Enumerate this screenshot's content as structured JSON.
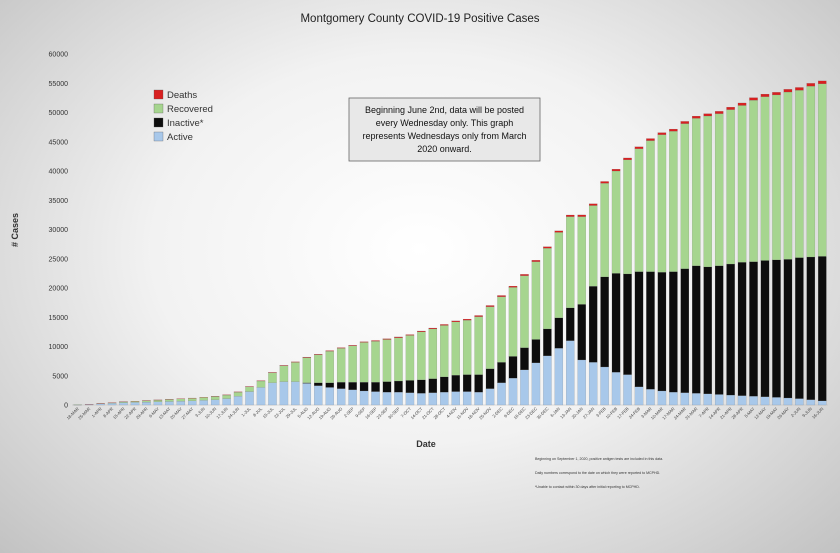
{
  "chart_data": {
    "type": "bar",
    "stacked": true,
    "title": "Montgomery County COVID-19 Positive Cases",
    "xlabel": "Date",
    "ylabel": "# Cases",
    "ylim": [
      0,
      60000
    ],
    "yticks": [
      0,
      5000,
      10000,
      15000,
      20000,
      25000,
      30000,
      35000,
      40000,
      45000,
      50000,
      55000,
      60000
    ],
    "grid": false,
    "legend_position": "top-left",
    "legend_order": [
      "Deaths",
      "Recovered",
      "Inactive*",
      "Active"
    ],
    "colors": {
      "Active": "#a8c8ea",
      "Inactive*": "#0d0d0d",
      "Recovered": "#a6d58f",
      "Deaths": "#d82020"
    },
    "categories": [
      "18-MAR",
      "25-MAR",
      "1-APR",
      "8-APR",
      "15-APR",
      "22-APR",
      "29-APR",
      "6-MAY",
      "13-MAY",
      "20-MAY",
      "27-MAY",
      "3-JUN",
      "10-JUN",
      "17-JUN",
      "24-JUN",
      "1-JUL",
      "8-JUL",
      "15-JUL",
      "22-JUL",
      "29-JUL",
      "5-AUG",
      "12-AUG",
      "19-AUG",
      "26-AUG",
      "2-SEP",
      "9-SEP",
      "16-SEP",
      "23-SEP",
      "30-SEP",
      "7-OCT",
      "14-OCT",
      "21-OCT",
      "28-OCT",
      "4-NOV",
      "11-NOV",
      "18-NOV",
      "25-NOV",
      "2-DEC",
      "9-DEC",
      "16-DEC",
      "23-DEC",
      "30-DEC",
      "6-JAN",
      "13-JAN",
      "20-JAN",
      "27-JAN",
      "3-FEB",
      "10-FEB",
      "17-FEB",
      "24-FEB",
      "3-MAR",
      "10-MAR",
      "17-MAR",
      "24-MAR",
      "31-MAR",
      "7-APR",
      "14-APR",
      "21-APR",
      "28-APR",
      "5-MAY",
      "12-MAY",
      "19-MAY",
      "26-MAY",
      "2-JUN",
      "9-JUN",
      "16-JUN"
    ],
    "series": [
      {
        "name": "Active",
        "values": [
          40,
          120,
          200,
          300,
          400,
          450,
          500,
          550,
          600,
          650,
          700,
          800,
          900,
          1100,
          1500,
          2300,
          3000,
          3800,
          4000,
          4000,
          3700,
          3300,
          3000,
          2800,
          2600,
          2400,
          2300,
          2200,
          2200,
          2100,
          2000,
          2100,
          2200,
          2300,
          2300,
          2200,
          2800,
          3800,
          4600,
          6000,
          7200,
          8400,
          9700,
          11000,
          7700,
          7300,
          6500,
          5600,
          5200,
          3100,
          2700,
          2400,
          2200,
          2100,
          2000,
          1900,
          1800,
          1700,
          1600,
          1500,
          1400,
          1300,
          1200,
          1100,
          900,
          700
        ]
      },
      {
        "name": "Inactive*",
        "values": [
          0,
          0,
          0,
          0,
          0,
          0,
          0,
          0,
          0,
          0,
          0,
          0,
          0,
          0,
          0,
          0,
          0,
          0,
          0,
          0,
          100,
          500,
          800,
          1100,
          1300,
          1500,
          1600,
          1800,
          1900,
          2100,
          2300,
          2400,
          2600,
          2800,
          2900,
          3000,
          3400,
          3500,
          3700,
          3800,
          4000,
          4600,
          5200,
          5600,
          9500,
          13000,
          15400,
          16900,
          17200,
          19700,
          20100,
          20300,
          20600,
          21200,
          21800,
          21700,
          22000,
          22400,
          22800,
          23000,
          23300,
          23500,
          23700,
          24100,
          24400,
          24700
        ]
      },
      {
        "name": "Recovered",
        "values": [
          10,
          30,
          60,
          100,
          150,
          200,
          250,
          300,
          350,
          400,
          450,
          500,
          550,
          600,
          700,
          800,
          1100,
          1700,
          2700,
          3300,
          4300,
          4800,
          5400,
          5800,
          6200,
          6800,
          7000,
          7200,
          7400,
          7700,
          8200,
          8500,
          8800,
          9100,
          9300,
          9900,
          10600,
          11200,
          11800,
          12300,
          13300,
          13800,
          14600,
          15600,
          15000,
          13800,
          16000,
          17500,
          19500,
          21000,
          22400,
          23500,
          24000,
          24800,
          25200,
          25800,
          26000,
          26400,
          26800,
          27600,
          28000,
          28200,
          28600,
          28600,
          29200,
          29500
        ]
      },
      {
        "name": "Deaths",
        "values": [
          0,
          2,
          5,
          10,
          15,
          20,
          25,
          30,
          35,
          40,
          45,
          50,
          55,
          60,
          65,
          70,
          75,
          80,
          85,
          90,
          95,
          100,
          105,
          110,
          115,
          120,
          125,
          130,
          135,
          140,
          150,
          160,
          170,
          180,
          190,
          200,
          210,
          220,
          230,
          240,
          250,
          260,
          270,
          280,
          290,
          300,
          310,
          320,
          330,
          340,
          350,
          360,
          370,
          380,
          390,
          400,
          410,
          420,
          430,
          440,
          450,
          460,
          470,
          480,
          490,
          500
        ]
      }
    ],
    "annotations": [
      "Beginning June 2nd, data will be posted every Wednesday only. This graph represents Wednesdays only from March 2020 onward."
    ],
    "footnotes": [
      "Beginning on September 1, 2020, positive antigen tests are included in this data.",
      "Daily numbers correspond to the date on which they were reported to MCPHD.",
      "*Unable to contact within 30 days after initial reporting to MCPHD."
    ]
  },
  "note_lines": [
    "Beginning June 2nd, data will be posted",
    "every Wednesday only. This graph",
    "represents Wednesdays only from March",
    "2020 onward."
  ]
}
